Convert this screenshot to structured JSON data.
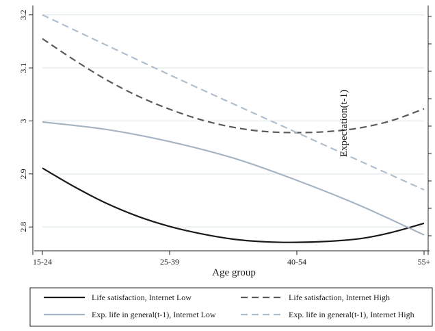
{
  "chart_data": {
    "type": "line",
    "title": "",
    "xlabel": "Age group",
    "ylabel": "",
    "right_axis_label": "Expectation(t-1)",
    "categories": [
      "15-24",
      "25-39",
      "40-54",
      "55+"
    ],
    "x_domain": [
      0,
      3
    ],
    "ylim": [
      2.755,
      3.21
    ],
    "y_ticks": [
      {
        "value": 2.8,
        "label": "2.8"
      },
      {
        "value": 2.9,
        "label": "2.9"
      },
      {
        "value": 3.0,
        "label": "3"
      },
      {
        "value": 3.1,
        "label": "3.1"
      },
      {
        "value": 3.2,
        "label": "3.2"
      }
    ],
    "grid": true,
    "legend_position": "bottom",
    "series": [
      {
        "name": "Life satisfaction, Internet Low",
        "color": "#1a1a1a",
        "dash": "solid",
        "x": [
          0,
          0.25,
          0.5,
          0.75,
          1.0,
          1.25,
          1.5,
          1.75,
          2.0,
          2.25,
          2.5,
          2.75,
          3.0
        ],
        "values": [
          2.911,
          2.876,
          2.845,
          2.82,
          2.801,
          2.787,
          2.777,
          2.772,
          2.771,
          2.773,
          2.778,
          2.79,
          2.807
        ]
      },
      {
        "name": "Life satisfaction, Internet High",
        "color": "#5a5a5a",
        "dash": "dashed",
        "x": [
          0,
          0.25,
          0.5,
          0.75,
          1.0,
          1.25,
          1.5,
          1.75,
          2.0,
          2.25,
          2.5,
          2.75,
          3.0
        ],
        "values": [
          3.155,
          3.115,
          3.078,
          3.047,
          3.022,
          3.002,
          2.988,
          2.98,
          2.978,
          2.98,
          2.987,
          3.001,
          3.023
        ]
      },
      {
        "name": "Exp. life in general(t-1), Internet Low",
        "color": "#a7b4c2",
        "dash": "solid",
        "x": [
          0,
          0.5,
          1.0,
          1.5,
          2.0,
          2.5,
          3.0
        ],
        "values": [
          2.998,
          2.984,
          2.961,
          2.93,
          2.888,
          2.84,
          2.785
        ]
      },
      {
        "name": "Exp. life in general(t-1), Internet High",
        "color": "#b0bfcd",
        "dash": "dashed",
        "x": [
          0,
          1.0,
          2.0,
          3.0
        ],
        "values": [
          3.2,
          3.087,
          2.978,
          2.87
        ]
      }
    ]
  }
}
